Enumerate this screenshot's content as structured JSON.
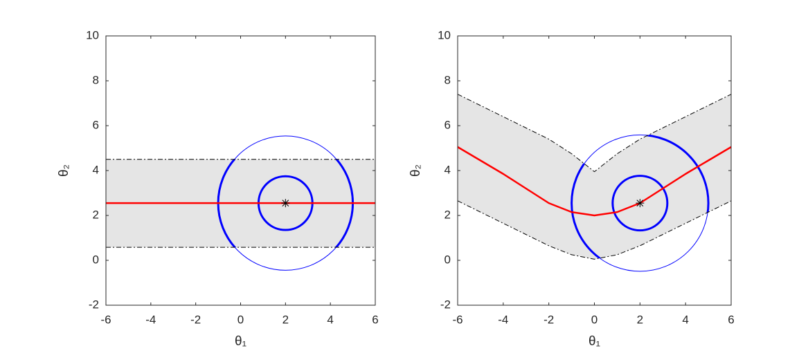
{
  "chart_data": [
    {
      "type": "line",
      "xlabel": "θ₁",
      "ylabel": "θ₂",
      "xlim": [
        -6,
        6
      ],
      "ylim": [
        -2,
        10
      ],
      "xticks": [
        -6,
        -4,
        -2,
        0,
        2,
        4,
        6
      ],
      "yticks": [
        -2,
        0,
        2,
        4,
        6,
        8,
        10
      ],
      "band_color": "#e5e5e5",
      "fill_between": [
        1,
        2
      ],
      "series": [
        {
          "color": "#ff0000",
          "style": "solid",
          "x": [
            -6,
            6
          ],
          "values": [
            2.55,
            2.55
          ]
        },
        {
          "color": "#000000",
          "style": "dashdot",
          "x": [
            -6,
            6
          ],
          "values": [
            4.5,
            4.5
          ]
        },
        {
          "color": "#000000",
          "style": "dashdot",
          "x": [
            -6,
            6
          ],
          "values": [
            0.58,
            0.58
          ]
        }
      ],
      "center": {
        "x": 2,
        "y": 2.55
      },
      "radii": [
        1.2,
        3
      ],
      "circle_color": "#0000ff"
    },
    {
      "type": "line",
      "xlabel": "θ₁",
      "ylabel": "θ₂",
      "xlim": [
        -6,
        6
      ],
      "ylim": [
        -2,
        10
      ],
      "xticks": [
        -6,
        -4,
        -2,
        0,
        2,
        4,
        6
      ],
      "yticks": [
        -2,
        0,
        2,
        4,
        6,
        8,
        10
      ],
      "band_color": "#e5e5e5",
      "fill_between": [
        1,
        2
      ],
      "series": [
        {
          "color": "#ff0000",
          "style": "solid",
          "x": [
            -6,
            -5,
            -4,
            -3,
            -2,
            -1,
            0,
            1,
            2,
            3,
            4,
            5,
            6
          ],
          "values": [
            5.05,
            4.45,
            3.85,
            3.2,
            2.55,
            2.15,
            2.0,
            2.15,
            2.55,
            3.2,
            3.85,
            4.45,
            5.05
          ]
        },
        {
          "color": "#000000",
          "style": "dashdot",
          "x": [
            -6,
            -5,
            -4,
            -3,
            -2,
            -1,
            0,
            1,
            2,
            3,
            4,
            5,
            6
          ],
          "values": [
            7.4,
            6.9,
            6.4,
            5.9,
            5.4,
            4.75,
            3.95,
            4.75,
            5.4,
            5.9,
            6.4,
            6.9,
            7.4
          ]
        },
        {
          "color": "#000000",
          "style": "dashdot",
          "x": [
            -6,
            -5,
            -4,
            -3,
            -2,
            -1,
            0,
            1,
            2,
            3,
            4,
            5,
            6
          ],
          "values": [
            2.65,
            2.15,
            1.65,
            1.15,
            0.65,
            0.25,
            0.05,
            0.25,
            0.65,
            1.15,
            1.65,
            2.15,
            2.65
          ]
        }
      ],
      "center": {
        "x": 2,
        "y": 2.55
      },
      "radii": [
        1.2,
        3
      ],
      "circle_color": "#0000ff"
    }
  ]
}
